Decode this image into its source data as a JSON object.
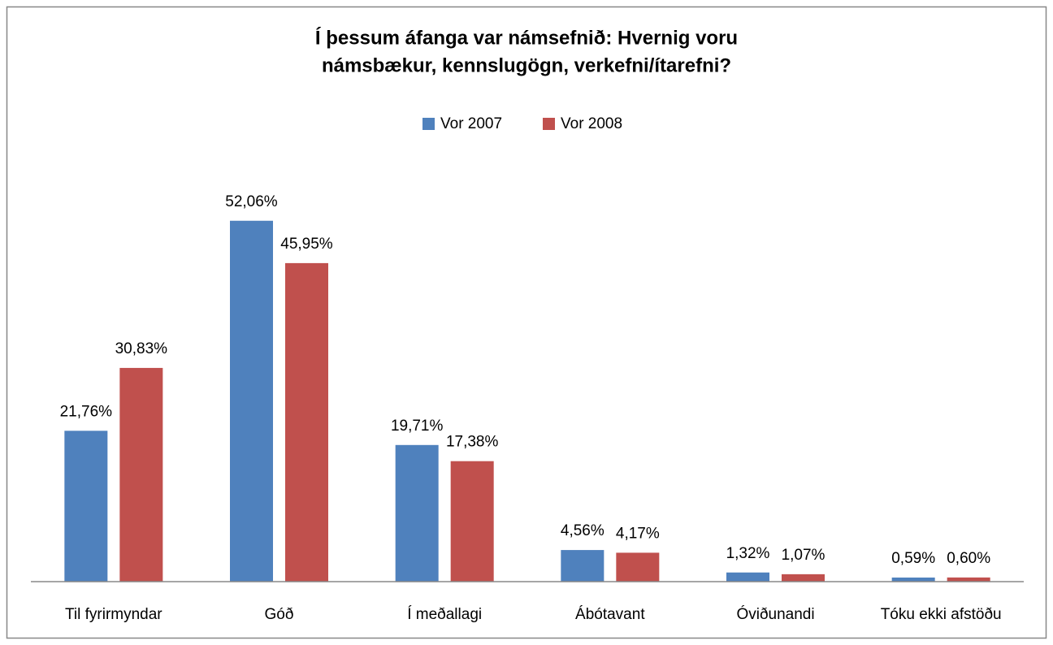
{
  "chart_data": {
    "type": "bar",
    "title": [
      "Í þessum áfanga var námsefnið: Hvernig voru",
      "námsbækur, kennslugögn, verkefni/ítarefni?"
    ],
    "categories": [
      "Til fyrirmyndar",
      "Góð",
      "Í meðallagi",
      "Ábótavant",
      "Óviðunandi",
      "Tóku ekki afstöðu"
    ],
    "series": [
      {
        "name": "Vor 2007",
        "color": "#4f81bd",
        "values": [
          21.76,
          52.06,
          19.71,
          4.56,
          1.32,
          0.59
        ],
        "value_labels": [
          "21,76%",
          "52,06%",
          "19,71%",
          "4,56%",
          "1,32%",
          "0,59%"
        ]
      },
      {
        "name": "Vor 2008",
        "color": "#c0504d",
        "values": [
          30.83,
          45.95,
          17.38,
          4.17,
          1.07,
          0.6
        ],
        "value_labels": [
          "30,83%",
          "45,95%",
          "17,38%",
          "4,17%",
          "1,07%",
          "0,60%"
        ]
      }
    ],
    "ylim": [
      0,
      60
    ],
    "grid": false,
    "legend": "top"
  }
}
